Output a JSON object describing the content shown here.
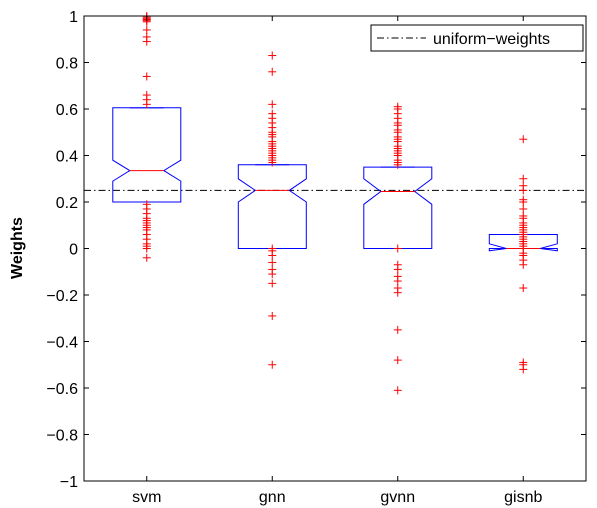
{
  "chart_data": {
    "type": "boxplot",
    "notched": true,
    "title": "",
    "xlabel": "",
    "ylabel": "Weights",
    "ylim": [
      -1,
      1
    ],
    "yticks": [
      -1,
      -0.8,
      -0.6,
      -0.4,
      -0.2,
      0,
      0.2,
      0.4,
      0.6,
      0.8,
      1
    ],
    "ytick_labels": [
      "−1",
      "−0.8",
      "−0.6",
      "−0.4",
      "−0.2",
      "0",
      "0.2",
      "0.4",
      "0.6",
      "0.8",
      "1"
    ],
    "grid": false,
    "categories": [
      "svm",
      "gnn",
      "gvnn",
      "gisnb"
    ],
    "boxes": [
      {
        "name": "svm",
        "q1": 0.2,
        "median": 0.335,
        "q3": 0.605,
        "whisker_low": 0.2,
        "whisker_high": 0.605,
        "notch_low": 0.29,
        "notch_high": 0.38,
        "outliers": [
          1.0,
          0.995,
          0.99,
          0.985,
          0.98,
          0.975,
          0.94,
          0.91,
          0.89,
          0.74,
          0.66,
          0.64,
          0.62,
          0.19,
          0.17,
          0.15,
          0.13,
          0.12,
          0.11,
          0.1,
          0.09,
          0.08,
          0.06,
          0.04,
          0.02,
          0.01,
          0.0,
          -0.04
        ]
      },
      {
        "name": "gnn",
        "q1": 0.0,
        "median": 0.25,
        "q3": 0.36,
        "whisker_low": 0.0,
        "whisker_high": 0.36,
        "notch_low": 0.2,
        "notch_high": 0.3,
        "outliers": [
          0.83,
          0.76,
          0.62,
          0.58,
          0.56,
          0.54,
          0.52,
          0.5,
          0.49,
          0.48,
          0.46,
          0.45,
          0.44,
          0.43,
          0.42,
          0.41,
          0.4,
          0.39,
          0.38,
          0.37,
          0.0,
          -0.01,
          -0.03,
          -0.06,
          -0.09,
          -0.11,
          -0.15,
          -0.29,
          -0.5
        ]
      },
      {
        "name": "gvnn",
        "q1": 0.0,
        "median": 0.245,
        "q3": 0.35,
        "whisker_low": 0.0,
        "whisker_high": 0.35,
        "notch_low": 0.19,
        "notch_high": 0.3,
        "outliers": [
          0.61,
          0.6,
          0.58,
          0.56,
          0.54,
          0.53,
          0.51,
          0.5,
          0.48,
          0.47,
          0.46,
          0.44,
          0.43,
          0.42,
          0.41,
          0.4,
          0.38,
          0.37,
          0.36,
          0.0,
          -0.07,
          -0.09,
          -0.12,
          -0.14,
          -0.17,
          -0.19,
          -0.35,
          -0.48,
          -0.61
        ]
      },
      {
        "name": "gisnb",
        "q1": 0.0,
        "median": 0.0,
        "q3": 0.06,
        "whisker_low": 0.0,
        "whisker_high": 0.06,
        "notch_low": -0.01,
        "notch_high": 0.02,
        "outliers": [
          0.47,
          0.3,
          0.27,
          0.25,
          0.21,
          0.2,
          0.17,
          0.14,
          0.13,
          0.11,
          0.1,
          0.09,
          0.08,
          0.07,
          0.06,
          0.05,
          0.04,
          0.03,
          0.02,
          0.01,
          0.0,
          -0.02,
          -0.03,
          -0.05,
          -0.07,
          -0.17,
          -0.49,
          -0.5,
          -0.52
        ]
      }
    ],
    "reference_line": {
      "label": "uniform−weights",
      "value": 0.25,
      "style": "dash-dot"
    },
    "legend": {
      "position": "top-right",
      "entries": [
        "uniform−weights"
      ]
    },
    "colors": {
      "box": "#0000ff",
      "median": "#ff0000",
      "outlier": "#ff0000",
      "reference": "#000000",
      "axes": "#000000"
    }
  }
}
